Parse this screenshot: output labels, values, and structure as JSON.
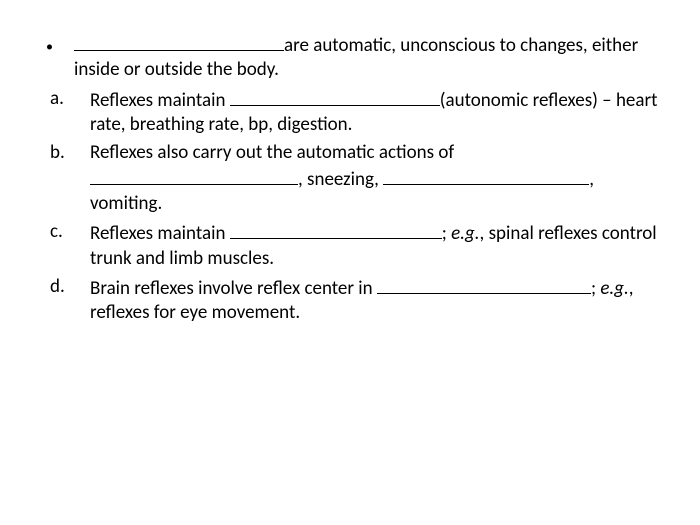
{
  "colors": {
    "text": "#000000",
    "background": "#ffffff",
    "underline": "#000000"
  },
  "typography": {
    "family": "Calibri",
    "size_pt": 19,
    "line_height": 1.28
  },
  "lead": {
    "after_blank": "are automatic, unconscious to changes, either inside or outside the body."
  },
  "items": {
    "a": {
      "marker": "a.",
      "pre": "Reflexes maintain ",
      "post": "(autonomic reflexes) – heart rate, breathing rate, bp, digestion."
    },
    "b": {
      "marker": "b.",
      "pre": "Reflexes also carry out the automatic actions of ",
      "mid": ", sneezing, ",
      "post": ", vomiting."
    },
    "c": {
      "marker": "c.",
      "pre": "Reflexes maintain ",
      "post_sep": "; ",
      "eg": "e.g.",
      "post_rest": ", spinal reflexes control trunk and limb muscles."
    },
    "d": {
      "marker": "d.",
      "pre": "Brain reflexes involve reflex center in ",
      "post_sep": "; ",
      "eg": "e.g.",
      "post_rest": ", reflexes for eye movement."
    }
  }
}
